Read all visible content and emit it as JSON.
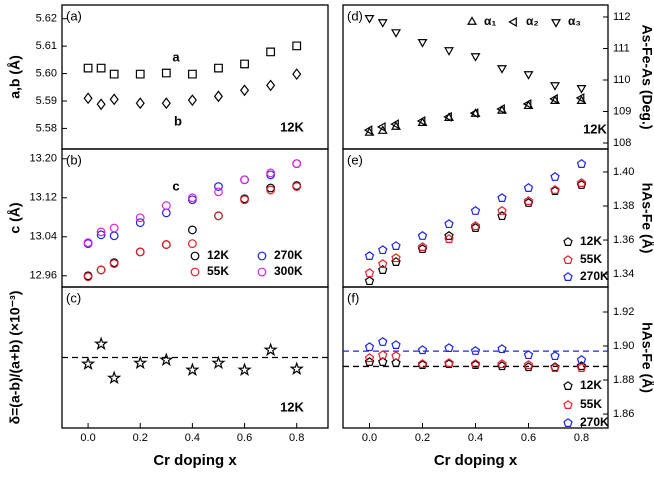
{
  "chart_data": [
    {
      "type": "scatter",
      "panel_label": "(a)",
      "ylabel": "a,b (Å)",
      "yaxis_side": "left",
      "x": [
        0,
        0.05,
        0.1,
        0.2,
        0.3,
        0.4,
        0.5,
        0.6,
        0.7,
        0.8
      ],
      "xlim": [
        -0.1,
        0.92
      ],
      "ylim": [
        5.5725,
        5.625
      ],
      "yticks": [
        5.58,
        5.59,
        {
          "value": 5.6,
          "label": "5.60"
        },
        5.61,
        5.62
      ],
      "series": [
        {
          "marker": "square",
          "color": "#000000",
          "values": [
            5.602,
            5.602,
            5.5998,
            5.5998,
            5.6002,
            5.5998,
            5.602,
            5.6035,
            5.6079,
            5.6101
          ]
        },
        {
          "marker": "diamond",
          "color": "#000000",
          "values": [
            5.591,
            5.5888,
            5.5906,
            5.5892,
            5.5892,
            5.5903,
            5.5917,
            5.5939,
            5.5957,
            5.5998
          ]
        }
      ],
      "annotations": [
        "a",
        "b",
        "12K"
      ]
    },
    {
      "type": "scatter",
      "panel_label": "(b)",
      "ylabel": "c (Å)",
      "yaxis_side": "left",
      "x": [
        0,
        0.05,
        0.1,
        0.2,
        0.3,
        0.4,
        0.5,
        0.6,
        0.7,
        0.8
      ],
      "xlim": [
        -0.1,
        0.92
      ],
      "ylim": [
        12.937,
        13.22
      ],
      "yticks": [
        12.96,
        13.04,
        13.12,
        {
          "value": 13.2,
          "label": "13.20"
        }
      ],
      "series": [
        {
          "name": "12K",
          "marker": "circle",
          "color": "#000000",
          "values": [
            12.96,
            12.972,
            12.987,
            13.009,
            13.024,
            13.054,
            13.083,
            13.118,
            13.14,
            13.145
          ]
        },
        {
          "name": "55K",
          "marker": "circle",
          "color": "#e8202a",
          "values": [
            12.958,
            12.972,
            12.985,
            13.009,
            13.024,
            13.026,
            13.083,
            13.116,
            13.136,
            13.143
          ]
        },
        {
          "name": "270K",
          "marker": "circle",
          "color": "#1f24e0",
          "values": [
            13.026,
            13.044,
            13.042,
            13.069,
            13.089,
            13.116,
            13.143,
            13.157,
            13.167,
            13.19
          ]
        },
        {
          "name": "300K",
          "marker": "circle",
          "color": "#e020e0",
          "values": [
            13.028,
            13.05,
            13.058,
            13.079,
            13.104,
            13.12,
            13.132,
            13.157,
            13.171,
            13.19
          ]
        }
      ],
      "annotations": [
        "c"
      ]
    },
    {
      "type": "scatter",
      "panel_label": "(c)",
      "ylabel": "δ=(a-b)/(a+b) (×10⁻³)",
      "xlabel": "Cr doping x",
      "yaxis_side": "left",
      "x": [
        0,
        0.05,
        0.1,
        0.2,
        0.3,
        0.4,
        0.5,
        0.6,
        0.7,
        0.8
      ],
      "xlim": [
        -0.1,
        0.92
      ],
      "ylim": [
        0.4,
        1.6
      ],
      "xticks": [
        {
          "value": 0,
          "label": "0.0"
        },
        0.2,
        0.4,
        0.6,
        0.8
      ],
      "hlines": [
        {
          "value": 1,
          "color": "#000000"
        }
      ],
      "series": [
        {
          "marker": "star",
          "color": "#000000",
          "values": [
            0.945,
            1.115,
            0.825,
            0.953,
            0.979,
            0.894,
            0.953,
            0.894,
            1.064,
            0.902
          ]
        }
      ],
      "annotations": [
        "12K"
      ]
    },
    {
      "type": "scatter",
      "panel_label": "(d)",
      "ylabel": "As-Fe-As (Deg.)",
      "yaxis_side": "right",
      "x": [
        0,
        0.05,
        0.1,
        0.2,
        0.3,
        0.4,
        0.5,
        0.6,
        0.7,
        0.8
      ],
      "xlim": [
        -0.1,
        0.9
      ],
      "ylim": [
        107.81,
        112.38
      ],
      "yticks": [
        108,
        109,
        110,
        111,
        112
      ],
      "series": [
        {
          "name": "α₁",
          "marker": "triangle-up",
          "color": "#000000",
          "values": [
            108.32,
            108.38,
            108.51,
            108.63,
            108.79,
            108.92,
            109.02,
            109.17,
            109.33,
            109.33
          ]
        },
        {
          "name": "α₂",
          "marker": "triangle-left",
          "color": "#000000",
          "values": [
            108.41,
            108.51,
            108.6,
            108.7,
            108.83,
            108.95,
            109.08,
            109.24,
            109.4,
            109.43
          ]
        },
        {
          "name": "α₃",
          "marker": "triangle-down",
          "color": "#000000",
          "values": [
            111.97,
            111.84,
            111.52,
            111.21,
            110.95,
            110.76,
            110.38,
            110.19,
            109.84,
            109.75
          ]
        }
      ],
      "annotations": [
        "12K"
      ]
    },
    {
      "type": "scatter",
      "panel_label": "(e)",
      "ylabel": "hAs-Fe (Å)",
      "yaxis_side": "right",
      "x": [
        0,
        0.05,
        0.1,
        0.2,
        0.3,
        0.4,
        0.5,
        0.6,
        0.7,
        0.8
      ],
      "xlim": [
        -0.1,
        0.9
      ],
      "ylim": [
        1.3324,
        1.4135
      ],
      "yticks": [
        1.34,
        1.36,
        1.38,
        {
          "value": 1.4,
          "label": "1.40"
        }
      ],
      "series": [
        {
          "name": "12K",
          "marker": "pentagon",
          "color": "#000000",
          "values": [
            1.3359,
            1.3424,
            1.3471,
            1.3547,
            1.3624,
            1.3671,
            1.3741,
            1.3818,
            1.3888,
            1.3924
          ]
        },
        {
          "name": "55K",
          "marker": "pentagon",
          "color": "#e8202a",
          "values": [
            1.3406,
            1.3459,
            1.3494,
            1.3559,
            1.3606,
            1.3682,
            1.3771,
            1.3829,
            1.3894,
            1.3935
          ]
        },
        {
          "name": "270K",
          "marker": "pentagon",
          "color": "#1f24e0",
          "values": [
            1.3506,
            1.3541,
            1.3565,
            1.3624,
            1.3694,
            1.3771,
            1.3847,
            1.3906,
            1.3971,
            1.4047
          ]
        }
      ]
    },
    {
      "type": "scatter",
      "panel_label": "(f)",
      "ylabel": "hAs-Fe (Å)",
      "xlabel": "Cr doping x",
      "yaxis_side": "right",
      "x": [
        0,
        0.05,
        0.1,
        0.2,
        0.3,
        0.4,
        0.5,
        0.6,
        0.7,
        0.8
      ],
      "xlim": [
        -0.1,
        0.9
      ],
      "ylim": [
        1.8518,
        1.9347
      ],
      "xticks": [
        {
          "value": 0,
          "label": "0.0"
        },
        0.2,
        0.4,
        0.6,
        0.8
      ],
      "yticks": [
        1.86,
        1.88,
        {
          "value": 1.9,
          "label": "1.90"
        },
        1.92
      ],
      "hlines": [
        {
          "value": 1.888,
          "color": "#000000"
        },
        {
          "value": 1.897,
          "color": "#1f24e0"
        }
      ],
      "series": [
        {
          "name": "12K",
          "marker": "pentagon",
          "color": "#000000",
          "values": [
            1.8906,
            1.8906,
            1.89,
            1.8888,
            1.8894,
            1.8888,
            1.8882,
            1.8876,
            1.8876,
            1.8882
          ]
        },
        {
          "name": "55K",
          "marker": "pentagon",
          "color": "#e8202a",
          "values": [
            1.8929,
            1.8947,
            1.8941,
            1.8894,
            1.89,
            1.8894,
            1.8894,
            1.8888,
            1.8871,
            1.8871
          ]
        },
        {
          "name": "270K",
          "marker": "pentagon",
          "color": "#1f24e0",
          "values": [
            1.8994,
            1.9024,
            1.9006,
            1.8976,
            1.8988,
            1.8971,
            1.8982,
            1.8947,
            1.8941,
            1.8918
          ]
        }
      ]
    }
  ]
}
